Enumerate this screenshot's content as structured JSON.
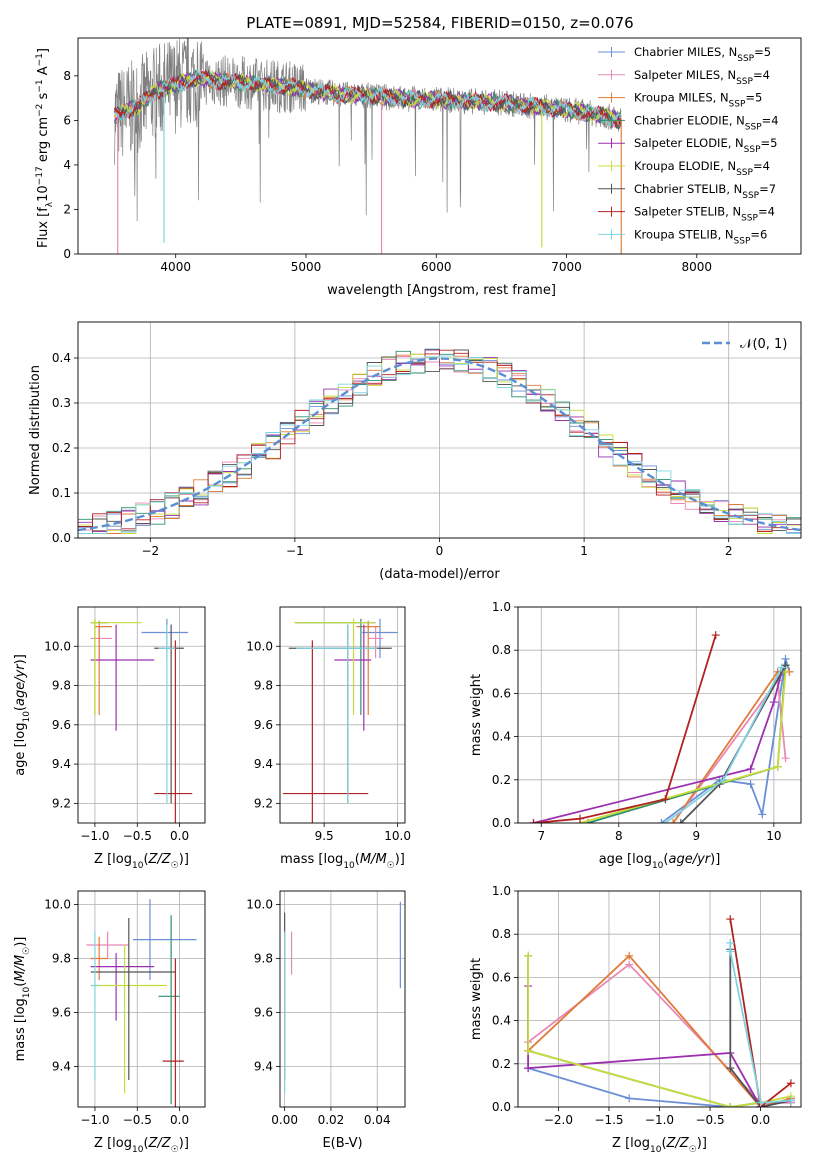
{
  "figure": {
    "title": "PLATE=0891, MJD=52584, FIBERID=0150, z=0.076"
  },
  "series_styles": [
    {
      "name": "Chabrier MILES, N_SSP=5",
      "label_base": "Chabrier MILES, N",
      "label_sub": "SSP",
      "label_tail": "=5",
      "color": "#6b8fd6"
    },
    {
      "name": "Salpeter MILES, N_SSP=4",
      "label_base": "Salpeter MILES, N",
      "label_sub": "SSP",
      "label_tail": "=4",
      "color": "#e889b6"
    },
    {
      "name": "Kroupa MILES, N_SSP=5",
      "label_base": "Kroupa MILES, N",
      "label_sub": "SSP",
      "label_tail": "=5",
      "color": "#e07b39"
    },
    {
      "name": "Chabrier ELODIE, N_SSP=4",
      "label_base": "Chabrier ELODIE, N",
      "label_sub": "SSP",
      "label_tail": "=4",
      "color": "#2f8f6a"
    },
    {
      "name": "Salpeter ELODIE, N_SSP=5",
      "label_base": "Salpeter ELODIE, N",
      "label_sub": "SSP",
      "label_tail": "=5",
      "color": "#9b30b0"
    },
    {
      "name": "Kroupa ELODIE, N_SSP=4",
      "label_base": "Kroupa ELODIE, N",
      "label_sub": "SSP",
      "label_tail": "=4",
      "color": "#c8dc3c"
    },
    {
      "name": "Chabrier STELIB, N_SSP=7",
      "label_base": "Chabrier STELIB, N",
      "label_sub": "SSP",
      "label_tail": "=7",
      "color": "#555555"
    },
    {
      "name": "Salpeter STELIB, N_SSP=4",
      "label_base": "Salpeter STELIB, N",
      "label_sub": "SSP",
      "label_tail": "=4",
      "color": "#b22222"
    },
    {
      "name": "Kroupa STELIB, N_SSP=6",
      "label_base": "Kroupa STELIB, N",
      "label_sub": "SSP",
      "label_tail": "=6",
      "color": "#7fd3e0"
    }
  ],
  "chart_data": [
    {
      "type": "line",
      "panel": "spectrum",
      "xlabel": "wavelength [Angstrom, rest frame]",
      "ylabel": "Flux [f_λ 10^-17 erg cm^-2 s^-1 A^-1]",
      "ylabel_parts": {
        "a": "Flux [f",
        "b": "λ",
        "c": "10",
        "d": "−17",
        "e": " erg cm",
        "f": "−2",
        "g": " s",
        "h": "−1",
        "i": " A",
        "j": "−1",
        "k": "]"
      },
      "xlim": [
        3250,
        8800
      ],
      "ylim": [
        0,
        9.7
      ],
      "xticks": [
        4000,
        5000,
        6000,
        7000,
        8000
      ],
      "yticks": [
        0,
        2,
        4,
        6,
        8
      ],
      "legend": "top-right",
      "data_series": {
        "name": "data",
        "color": "#808080"
      },
      "continuum": {
        "x": [
          3530,
          3700,
          3850,
          4000,
          4150,
          4300,
          4500,
          4700,
          4900,
          5100,
          5300,
          5500,
          5700,
          5900,
          6100,
          6300,
          6500,
          6700,
          6900,
          7100,
          7300,
          7420
        ],
        "y": [
          6.2,
          6.6,
          7.3,
          7.6,
          7.9,
          7.8,
          7.7,
          7.6,
          7.5,
          7.3,
          7.15,
          7.1,
          7.0,
          6.95,
          6.9,
          6.85,
          6.8,
          6.65,
          6.55,
          6.4,
          6.2,
          6.0
        ]
      },
      "dips": [
        {
          "series": "Salpeter MILES",
          "x": 3555,
          "to": 0.0
        },
        {
          "series": "Kroupa STELIB",
          "x": 3910,
          "to": 0.5
        },
        {
          "series": "Salpeter MILES",
          "x": 5580,
          "to": 0.0
        },
        {
          "series": "Kroupa ELODIE",
          "x": 6810,
          "to": 0.3
        },
        {
          "series": "Kroupa MILES",
          "x": 7420,
          "to": 0.0
        }
      ]
    },
    {
      "type": "histogram",
      "panel": "residuals",
      "xlabel": "(data-model)/error",
      "ylabel": "Normed distribution",
      "xlim": [
        -2.5,
        2.5
      ],
      "ylim": [
        0,
        0.48
      ],
      "xticks": [
        -2,
        -1,
        0,
        1,
        2
      ],
      "yticks": [
        0.0,
        0.1,
        0.2,
        0.3,
        0.4
      ],
      "grid": true,
      "legend": "top-right",
      "reference": {
        "name": "N(0,1)",
        "label": "𝒩(0, 1)",
        "color": "#5b8fd4",
        "mean": 0,
        "sigma": 1
      },
      "bin_edges": [
        -2.5,
        2.5
      ],
      "n_bins": 50
    },
    {
      "type": "errorbar",
      "panel": "age-vs-Z",
      "xlabel": "Z [log10(Z/Z☉)]",
      "ylabel": "age [log10(age/yr)]",
      "xlim": [
        -1.2,
        0.3
      ],
      "ylim": [
        9.1,
        10.2
      ],
      "xticks": [
        -1.0,
        -0.5,
        0.0
      ],
      "yticks": [
        9.2,
        9.4,
        9.6,
        9.8,
        10.0
      ],
      "grid": true,
      "points": [
        {
          "series": "Chabrier MILES",
          "x": -0.15,
          "xerr": [
            0.3,
            0.25
          ],
          "y": 10.07,
          "yerr": [
            0.13,
            0.07
          ]
        },
        {
          "series": "Salpeter MILES",
          "x": -0.95,
          "xerr": [
            0.1,
            0.15
          ],
          "y": 10.04,
          "yerr": [
            0.1,
            0.06
          ]
        },
        {
          "series": "Kroupa MILES",
          "x": -0.95,
          "xerr": [
            0.05,
            0.15
          ],
          "y": 10.1,
          "yerr": [
            0.45,
            0.03
          ]
        },
        {
          "series": "Chabrier ELODIE",
          "x": -1.0,
          "xerr": [
            0.05,
            0.15
          ],
          "y": 10.12,
          "yerr": [
            0.47,
            0.02
          ]
        },
        {
          "series": "Salpeter ELODIE",
          "x": -0.75,
          "xerr": [
            0.3,
            0.45
          ],
          "y": 9.93,
          "yerr": [
            0.36,
            0.18
          ]
        },
        {
          "series": "Kroupa ELODIE",
          "x": -1.0,
          "xerr": [
            0.05,
            0.55
          ],
          "y": 10.12,
          "yerr": [
            0.47,
            0.02
          ]
        },
        {
          "series": "Chabrier STELIB",
          "x": -0.1,
          "xerr": [
            0.2,
            0.15
          ],
          "y": 9.99,
          "yerr": [
            0.79,
            0.12
          ]
        },
        {
          "series": "Salpeter STELIB",
          "x": -0.05,
          "xerr": [
            0.25,
            0.2
          ],
          "y": 9.25,
          "yerr": [
            0.15,
            0.78
          ]
        },
        {
          "series": "Kroupa STELIB",
          "x": -0.15,
          "xerr": [
            0.1,
            0.1
          ],
          "y": 9.99,
          "yerr": [
            0.79,
            0.12
          ]
        }
      ]
    },
    {
      "type": "errorbar",
      "panel": "age-vs-mass",
      "xlabel": "mass [log10(M/M☉)]",
      "ylabel": "",
      "xlim": [
        9.2,
        10.05
      ],
      "ylim": [
        9.1,
        10.2
      ],
      "xticks": [
        9.5,
        10.0
      ],
      "yticks": [
        9.2,
        9.4,
        9.6,
        9.8,
        10.0
      ],
      "grid": true,
      "points": [
        {
          "series": "Chabrier MILES",
          "x": 9.88,
          "xerr": [
            0.12,
            0.12
          ],
          "y": 10.07,
          "yerr": [
            0.13,
            0.07
          ]
        },
        {
          "series": "Salpeter MILES",
          "x": 9.85,
          "xerr": [
            0.05,
            0.05
          ],
          "y": 10.04,
          "yerr": [
            0.1,
            0.06
          ]
        },
        {
          "series": "Kroupa MILES",
          "x": 9.8,
          "xerr": [
            0.08,
            0.08
          ],
          "y": 10.1,
          "yerr": [
            0.45,
            0.03
          ]
        },
        {
          "series": "Chabrier ELODIE",
          "x": 9.75,
          "xerr": [
            0.45,
            0.1
          ],
          "y": 10.12,
          "yerr": [
            0.47,
            0.02
          ]
        },
        {
          "series": "Salpeter ELODIE",
          "x": 9.77,
          "xerr": [
            0.2,
            0.05
          ],
          "y": 9.93,
          "yerr": [
            0.36,
            0.18
          ]
        },
        {
          "series": "Kroupa ELODIE",
          "x": 9.7,
          "xerr": [
            0.4,
            0.15
          ],
          "y": 10.12,
          "yerr": [
            0.47,
            0.02
          ]
        },
        {
          "series": "Chabrier STELIB",
          "x": 9.66,
          "xerr": [
            0.4,
            0.3
          ],
          "y": 9.99,
          "yerr": [
            0.79,
            0.12
          ]
        },
        {
          "series": "Salpeter STELIB",
          "x": 9.42,
          "xerr": [
            0.2,
            0.38
          ],
          "y": 9.25,
          "yerr": [
            0.15,
            0.78
          ]
        },
        {
          "series": "Kroupa STELIB",
          "x": 9.66,
          "xerr": [
            0.35,
            0.2
          ],
          "y": 9.99,
          "yerr": [
            0.79,
            0.12
          ]
        }
      ]
    },
    {
      "type": "line",
      "panel": "mass-weight-vs-age",
      "xlabel": "age [log10(age/yr)]",
      "ylabel": "mass weight",
      "xlim": [
        6.7,
        10.35
      ],
      "ylim": [
        0.0,
        1.0
      ],
      "xticks": [
        7,
        8,
        9,
        10
      ],
      "yticks": [
        0.0,
        0.2,
        0.4,
        0.6,
        0.8,
        1.0
      ],
      "grid": true,
      "marker": "+",
      "series": [
        {
          "name": "Chabrier MILES",
          "x": [
            8.55,
            9.3,
            9.7,
            9.85,
            10.15,
            10.2
          ],
          "y": [
            0.0,
            0.2,
            0.18,
            0.04,
            0.76,
            0.7
          ]
        },
        {
          "name": "Salpeter MILES",
          "x": [
            8.7,
            10.05,
            10.15
          ],
          "y": [
            0.0,
            0.66,
            0.3
          ]
        },
        {
          "name": "Kroupa MILES",
          "x": [
            8.7,
            10.05,
            10.2
          ],
          "y": [
            0.0,
            0.7,
            0.7
          ]
        },
        {
          "name": "Chabrier ELODIE",
          "x": [
            7.6,
            10.05,
            10.15
          ],
          "y": [
            0.0,
            0.26,
            0.73
          ]
        },
        {
          "name": "Salpeter ELODIE",
          "x": [
            6.9,
            9.7,
            10.0,
            10.1
          ],
          "y": [
            0.0,
            0.25,
            0.56,
            0.7
          ]
        },
        {
          "name": "Kroupa ELODIE",
          "x": [
            7.5,
            10.05,
            10.15
          ],
          "y": [
            0.0,
            0.26,
            0.7
          ]
        },
        {
          "name": "Chabrier STELIB",
          "x": [
            8.8,
            9.3,
            10.15
          ],
          "y": [
            0.0,
            0.18,
            0.73
          ]
        },
        {
          "name": "Salpeter STELIB",
          "x": [
            6.9,
            7.5,
            8.6,
            9.25
          ],
          "y": [
            0.0,
            0.02,
            0.11,
            0.87
          ]
        },
        {
          "name": "Kroupa STELIB",
          "x": [
            8.6,
            9.35,
            10.1
          ],
          "y": [
            0.0,
            0.2,
            0.72
          ]
        }
      ]
    },
    {
      "type": "errorbar",
      "panel": "mass-vs-Z",
      "xlabel": "Z [log10(Z/Z☉)]",
      "ylabel": "mass [log10(M/M☉)]",
      "xlim": [
        -1.2,
        0.3
      ],
      "ylim": [
        9.25,
        10.05
      ],
      "xticks": [
        -1.0,
        -0.5,
        0.0
      ],
      "yticks": [
        9.4,
        9.6,
        9.8,
        10.0
      ],
      "grid": true,
      "points": [
        {
          "series": "Chabrier MILES",
          "x": -0.35,
          "xerr": [
            0.2,
            0.55
          ],
          "y": 9.87,
          "yerr": [
            0.15,
            0.15
          ]
        },
        {
          "series": "Salpeter MILES",
          "x": -0.85,
          "xerr": [
            0.25,
            0.25
          ],
          "y": 9.85,
          "yerr": [
            0.05,
            0.05
          ]
        },
        {
          "series": "Kroupa MILES",
          "x": -0.95,
          "xerr": [
            0.1,
            0.1
          ],
          "y": 9.8,
          "yerr": [
            0.08,
            0.08
          ]
        },
        {
          "series": "Chabrier ELODIE",
          "x": -0.1,
          "xerr": [
            0.15,
            0.1
          ],
          "y": 9.66,
          "yerr": [
            0.4,
            0.3
          ]
        },
        {
          "series": "Salpeter ELODIE",
          "x": -0.75,
          "xerr": [
            0.3,
            0.45
          ],
          "y": 9.77,
          "yerr": [
            0.2,
            0.05
          ]
        },
        {
          "series": "Kroupa ELODIE",
          "x": -0.65,
          "xerr": [
            0.4,
            0.5
          ],
          "y": 9.7,
          "yerr": [
            0.4,
            0.15
          ]
        },
        {
          "series": "Chabrier STELIB",
          "x": -0.6,
          "xerr": [
            0.45,
            0.55
          ],
          "y": 9.75,
          "yerr": [
            0.4,
            0.2
          ]
        },
        {
          "series": "Salpeter STELIB",
          "x": -0.05,
          "xerr": [
            0.15,
            0.1
          ],
          "y": 9.42,
          "yerr": [
            0.2,
            0.38
          ]
        },
        {
          "series": "Kroupa STELIB",
          "x": -1.0,
          "xerr": [
            0.05,
            0.05
          ],
          "y": 9.7,
          "yerr": [
            0.35,
            0.2
          ]
        }
      ]
    },
    {
      "type": "errorbar",
      "panel": "mass-vs-EBV",
      "xlabel": "E(B-V)",
      "ylabel": "",
      "xlim": [
        -0.002,
        0.052
      ],
      "ylim": [
        9.25,
        10.05
      ],
      "xticks": [
        0.0,
        0.02,
        0.04
      ],
      "yticks": [
        9.4,
        9.6,
        9.8,
        10.0
      ],
      "grid": true,
      "points": [
        {
          "series": "Chabrier MILES",
          "x": 0.05,
          "xerr": [
            0,
            0
          ],
          "y": 9.85,
          "yerr": [
            0.16,
            0.16
          ]
        },
        {
          "series": "Salpeter MILES",
          "x": 0.003,
          "xerr": [
            0,
            0
          ],
          "y": 9.82,
          "yerr": [
            0.08,
            0.08
          ]
        },
        {
          "series": "Chabrier STELIB",
          "x": 0.0,
          "xerr": [
            0,
            0
          ],
          "y": 9.75,
          "yerr": [
            0.4,
            0.22
          ]
        },
        {
          "series": "Kroupa STELIB",
          "x": 0.0,
          "xerr": [
            0,
            0
          ],
          "y": 9.6,
          "yerr": [
            0.3,
            0.3
          ]
        }
      ]
    },
    {
      "type": "line",
      "panel": "mass-weight-vs-Z",
      "xlabel": "Z [log10(Z/Z☉)]",
      "ylabel": "mass weight",
      "xlim": [
        -2.4,
        0.4
      ],
      "ylim": [
        0.0,
        1.0
      ],
      "xticks": [
        -2.0,
        -1.5,
        -1.0,
        -0.5,
        0.0
      ],
      "yticks": [
        0.0,
        0.2,
        0.4,
        0.6,
        0.8,
        1.0
      ],
      "grid": true,
      "marker": "+",
      "series": [
        {
          "name": "Chabrier MILES",
          "x": [
            -2.3,
            -1.3,
            -0.3,
            0.0,
            0.3
          ],
          "y": [
            0.18,
            0.04,
            0.0,
            0.02,
            0.02
          ]
        },
        {
          "name": "Salpeter MILES",
          "x": [
            -2.3,
            -1.3,
            0.0,
            0.3
          ],
          "y": [
            0.3,
            0.66,
            0.02,
            0.02
          ]
        },
        {
          "name": "Kroupa MILES",
          "x": [
            -2.3,
            -1.3,
            0.0,
            0.3
          ],
          "y": [
            0.26,
            0.7,
            0.0,
            0.04
          ]
        },
        {
          "name": "Chabrier ELODIE",
          "x": [
            -2.3,
            -2.3,
            -0.3,
            0.0
          ],
          "y": [
            0.7,
            0.26,
            0.0,
            0.02
          ]
        },
        {
          "name": "Salpeter ELODIE",
          "x": [
            -2.3,
            -2.3,
            -0.3,
            0.0,
            0.3
          ],
          "y": [
            0.56,
            0.18,
            0.25,
            0.0,
            0.03
          ]
        },
        {
          "name": "Kroupa ELODIE",
          "x": [
            -2.3,
            -2.3,
            -0.3,
            0.0,
            0.3
          ],
          "y": [
            0.7,
            0.26,
            0.0,
            0.02,
            0.05
          ]
        },
        {
          "name": "Chabrier STELIB",
          "x": [
            -0.3,
            -0.3,
            0.0,
            0.3
          ],
          "y": [
            0.73,
            0.18,
            0.0,
            0.03
          ]
        },
        {
          "name": "Salpeter STELIB",
          "x": [
            -0.3,
            0.0,
            0.3
          ],
          "y": [
            0.87,
            0.0,
            0.11
          ]
        },
        {
          "name": "Kroupa STELIB",
          "x": [
            -0.3,
            -0.3,
            0.0,
            0.3
          ],
          "y": [
            0.76,
            0.72,
            0.02,
            0.03
          ]
        }
      ]
    }
  ]
}
